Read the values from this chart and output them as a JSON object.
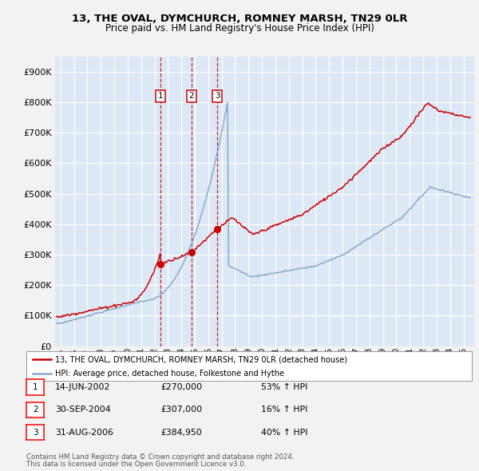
{
  "title1": "13, THE OVAL, DYMCHURCH, ROMNEY MARSH, TN29 0LR",
  "title2": "Price paid vs. HM Land Registry's House Price Index (HPI)",
  "fig_bg_color": "#f2f2f2",
  "plot_bg_color": "#dce8f5",
  "grid_color": "#ffffff",
  "ylim": [
    0,
    950000
  ],
  "yticks": [
    0,
    100000,
    200000,
    300000,
    400000,
    500000,
    600000,
    700000,
    800000,
    900000
  ],
  "xlim_start": 1994.6,
  "xlim_end": 2025.8,
  "xticks": [
    1995,
    1996,
    1997,
    1998,
    1999,
    2000,
    2001,
    2002,
    2003,
    2004,
    2005,
    2006,
    2007,
    2008,
    2009,
    2010,
    2011,
    2012,
    2013,
    2014,
    2015,
    2016,
    2017,
    2018,
    2019,
    2020,
    2021,
    2022,
    2023,
    2024,
    2025
  ],
  "legend_label_red": "13, THE OVAL, DYMCHURCH, ROMNEY MARSH, TN29 0LR (detached house)",
  "legend_label_blue": "HPI: Average price, detached house, Folkestone and Hythe",
  "transactions": [
    {
      "num": 1,
      "date": "14-JUN-2002",
      "price": 270000,
      "pct": "53%",
      "dir": "↑",
      "year": 2002.45
    },
    {
      "num": 2,
      "date": "30-SEP-2004",
      "price": 307000,
      "pct": "16%",
      "dir": "↑",
      "year": 2004.75
    },
    {
      "num": 3,
      "date": "31-AUG-2006",
      "price": 384950,
      "pct": "40%",
      "dir": "↑",
      "year": 2006.67
    }
  ],
  "footer1": "Contains HM Land Registry data © Crown copyright and database right 2024.",
  "footer2": "This data is licensed under the Open Government Licence v3.0.",
  "red_color": "#cc0000",
  "blue_color": "#88aacc"
}
